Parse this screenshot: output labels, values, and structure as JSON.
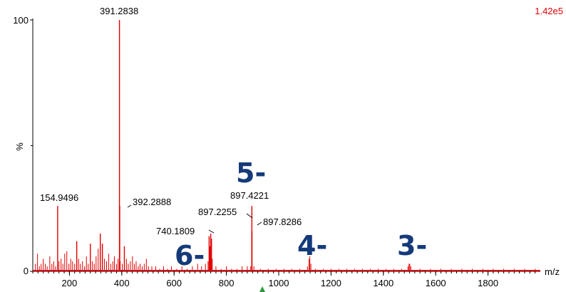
{
  "chart_data": {
    "type": "bar",
    "title": "",
    "xlabel": "m/z",
    "ylabel": "%",
    "intensity_scale": "1.42e5",
    "xlim": [
      60,
      2000
    ],
    "ylim": [
      0,
      100
    ],
    "x_ticks": [
      200,
      400,
      600,
      800,
      1000,
      1200,
      1400,
      1600,
      1800
    ],
    "y_ticks": [
      0,
      100
    ],
    "colors": {
      "spectrum": "#e00000",
      "charge_labels": "#143a7a",
      "marker": "#2a9a3a"
    },
    "peak_labels": [
      {
        "text": "391.2838",
        "mz": 391.2838,
        "intensity": 100
      },
      {
        "text": "154.9496",
        "mz": 154.9496,
        "intensity": 26
      },
      {
        "text": "392.2888",
        "mz": 392.2888,
        "intensity": 26
      },
      {
        "text": "897.4221",
        "mz": 897.4221,
        "intensity": 26
      },
      {
        "text": "897.2255",
        "mz": 897.2255,
        "intensity": 16
      },
      {
        "text": "897.8286",
        "mz": 897.8286,
        "intensity": 16
      },
      {
        "text": "740.1809",
        "mz": 740.1809,
        "intensity": 15
      }
    ],
    "charge_states": [
      "5-",
      "6-",
      "4-",
      "3-"
    ],
    "peaks": [
      [
        70,
        3
      ],
      [
        78,
        7
      ],
      [
        85,
        2
      ],
      [
        92,
        3
      ],
      [
        100,
        5
      ],
      [
        108,
        3
      ],
      [
        115,
        2
      ],
      [
        125,
        6
      ],
      [
        133,
        3
      ],
      [
        140,
        4
      ],
      [
        147,
        2
      ],
      [
        154.9496,
        26
      ],
      [
        160,
        4
      ],
      [
        168,
        5
      ],
      [
        175,
        3
      ],
      [
        182,
        7
      ],
      [
        190,
        8
      ],
      [
        198,
        3
      ],
      [
        205,
        5
      ],
      [
        212,
        4
      ],
      [
        220,
        3
      ],
      [
        228,
        12
      ],
      [
        235,
        5
      ],
      [
        242,
        3
      ],
      [
        250,
        4
      ],
      [
        258,
        2
      ],
      [
        265,
        6
      ],
      [
        272,
        3
      ],
      [
        280,
        11
      ],
      [
        288,
        4
      ],
      [
        295,
        3
      ],
      [
        302,
        6
      ],
      [
        310,
        9
      ],
      [
        318,
        15
      ],
      [
        326,
        11
      ],
      [
        334,
        5
      ],
      [
        342,
        4
      ],
      [
        350,
        7
      ],
      [
        358,
        3
      ],
      [
        366,
        4
      ],
      [
        372,
        6
      ],
      [
        380,
        3
      ],
      [
        386,
        5
      ],
      [
        391.2838,
        100
      ],
      [
        392.2888,
        26
      ],
      [
        394,
        4
      ],
      [
        402,
        3
      ],
      [
        410,
        10
      ],
      [
        418,
        5
      ],
      [
        425,
        3
      ],
      [
        433,
        4
      ],
      [
        441,
        6
      ],
      [
        448,
        3
      ],
      [
        455,
        4
      ],
      [
        463,
        2
      ],
      [
        470,
        3
      ],
      [
        478,
        2
      ],
      [
        486,
        3
      ],
      [
        494,
        5
      ],
      [
        502,
        2
      ],
      [
        515,
        2
      ],
      [
        530,
        2
      ],
      [
        545,
        1
      ],
      [
        560,
        2
      ],
      [
        575,
        1
      ],
      [
        590,
        2
      ],
      [
        610,
        1
      ],
      [
        630,
        2
      ],
      [
        650,
        1
      ],
      [
        670,
        2
      ],
      [
        690,
        3
      ],
      [
        705,
        2
      ],
      [
        720,
        3
      ],
      [
        730,
        4
      ],
      [
        734,
        14
      ],
      [
        737,
        10
      ],
      [
        740.1809,
        15
      ],
      [
        743,
        13
      ],
      [
        746,
        5
      ],
      [
        760,
        2
      ],
      [
        780,
        1
      ],
      [
        800,
        2
      ],
      [
        820,
        1
      ],
      [
        840,
        1
      ],
      [
        860,
        2
      ],
      [
        880,
        2
      ],
      [
        893,
        2
      ],
      [
        897.2255,
        16
      ],
      [
        897.4221,
        26
      ],
      [
        897.8286,
        16
      ],
      [
        905,
        2
      ],
      [
        930,
        1
      ],
      [
        960,
        1
      ],
      [
        990,
        1
      ],
      [
        1020,
        1
      ],
      [
        1050,
        1
      ],
      [
        1080,
        1
      ],
      [
        1110,
        2
      ],
      [
        1116,
        5
      ],
      [
        1119,
        6
      ],
      [
        1123,
        3
      ],
      [
        1140,
        1
      ],
      [
        1170,
        1
      ],
      [
        1200,
        1
      ],
      [
        1230,
        1
      ],
      [
        1260,
        1
      ],
      [
        1290,
        1
      ],
      [
        1320,
        1
      ],
      [
        1350,
        1
      ],
      [
        1380,
        1
      ],
      [
        1410,
        1
      ],
      [
        1440,
        1
      ],
      [
        1470,
        1
      ],
      [
        1494,
        2
      ],
      [
        1498,
        3
      ],
      [
        1501,
        3
      ],
      [
        1505,
        2
      ],
      [
        1540,
        1
      ],
      [
        1580,
        1
      ],
      [
        1620,
        1
      ],
      [
        1660,
        1
      ],
      [
        1700,
        1
      ],
      [
        1740,
        1
      ],
      [
        1780,
        1
      ],
      [
        1820,
        1
      ],
      [
        1860,
        1
      ],
      [
        1900,
        1
      ],
      [
        1940,
        1
      ],
      [
        1980,
        1
      ]
    ]
  }
}
